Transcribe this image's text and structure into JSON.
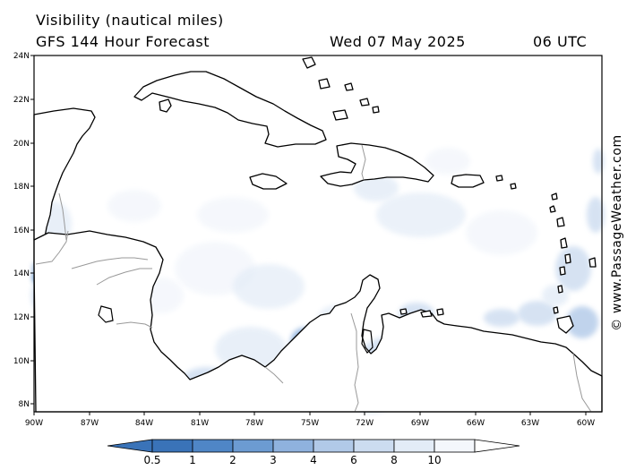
{
  "header": {
    "line1": "Visibility (nautical miles)",
    "line2": "GFS 144 Hour Forecast",
    "date": "Wed 07 May 2025",
    "time": "06 UTC"
  },
  "credit": "© www.PassageWeather.com",
  "map": {
    "lat_labels": [
      "24N",
      "22N",
      "20N",
      "18N",
      "16N",
      "14N",
      "12N",
      "10N",
      "8N"
    ],
    "lon_labels": [
      "90W",
      "87W",
      "84W",
      "81W",
      "78W",
      "75W",
      "72W",
      "69W",
      "66W",
      "63W",
      "60W"
    ],
    "lon_range": [
      -90,
      -59.5
    ],
    "lat_range": [
      7.5,
      24
    ],
    "land_color": "#ffffff",
    "coast_color": "#000000",
    "border_color": "#999999"
  },
  "legend": {
    "labels": [
      "0.5",
      "1",
      "2",
      "3",
      "4",
      "6",
      "8",
      "10"
    ],
    "colors": [
      "#3a73b8",
      "#4f86c6",
      "#6c9bd2",
      "#8fb2de",
      "#b1c9e8",
      "#ccdcf0",
      "#e3ecf7",
      "#f4f7fc"
    ]
  }
}
